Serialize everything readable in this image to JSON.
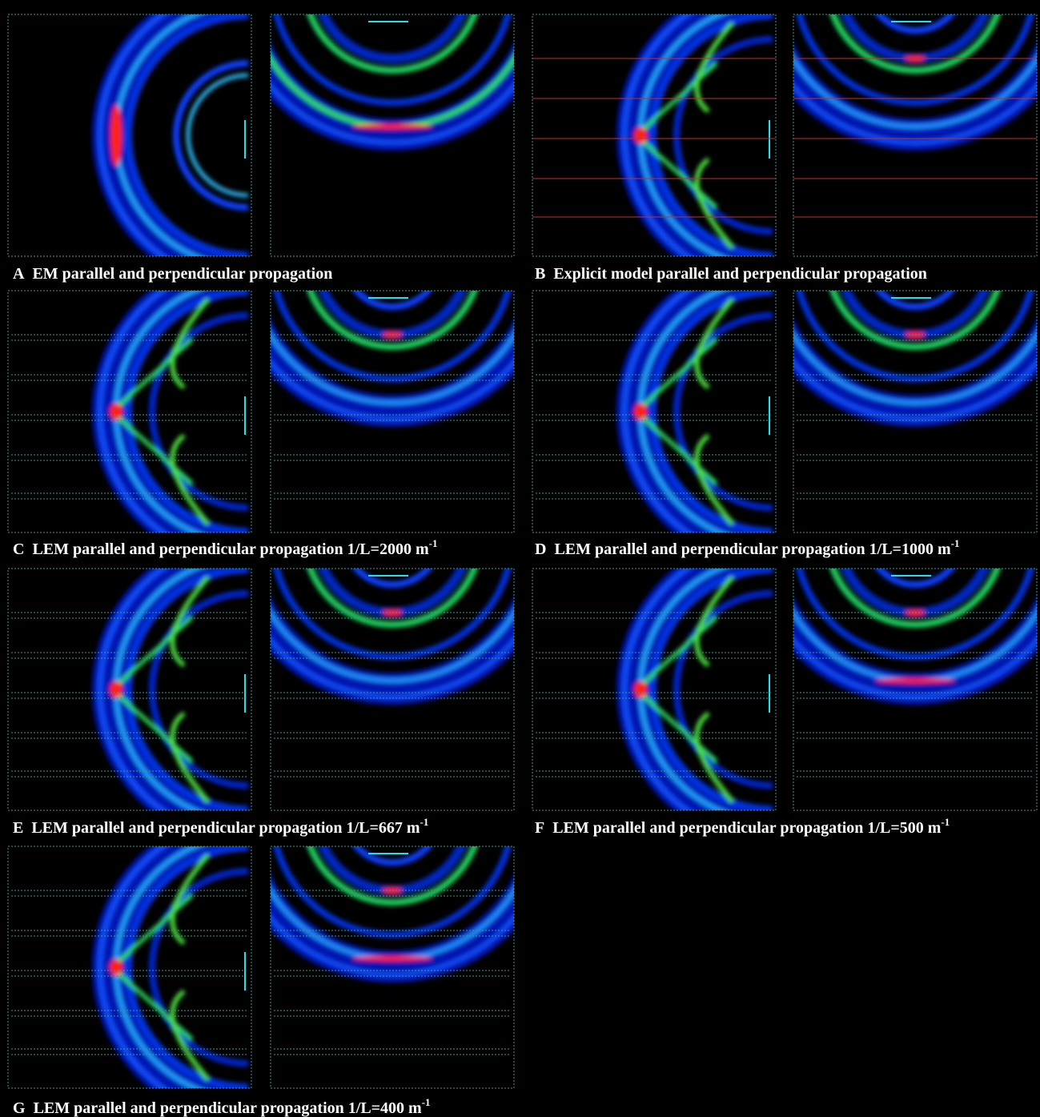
{
  "panels": [
    {
      "letter": "A",
      "caption": "EM parallel and perpendicular propagation"
    },
    {
      "letter": "B",
      "caption": "Explicit model parallel and perpendicular propagation"
    },
    {
      "letter": "C",
      "caption": "LEM parallel and perpendicular propagation 1/L=2000 m",
      "superscript": "-1"
    },
    {
      "letter": "D",
      "caption": "LEM parallel and perpendicular propagation 1/L=1000 m",
      "superscript": "-1"
    },
    {
      "letter": "E",
      "caption": "LEM parallel and perpendicular propagation 1/L=667 m",
      "superscript": "-1"
    },
    {
      "letter": "F",
      "caption": "LEM parallel and perpendicular propagation 1/L=500 m",
      "superscript": "-1"
    },
    {
      "letter": "G",
      "caption": "LEM parallel and perpendicular propagation 1/L=400 m",
      "superscript": "-1"
    }
  ]
}
